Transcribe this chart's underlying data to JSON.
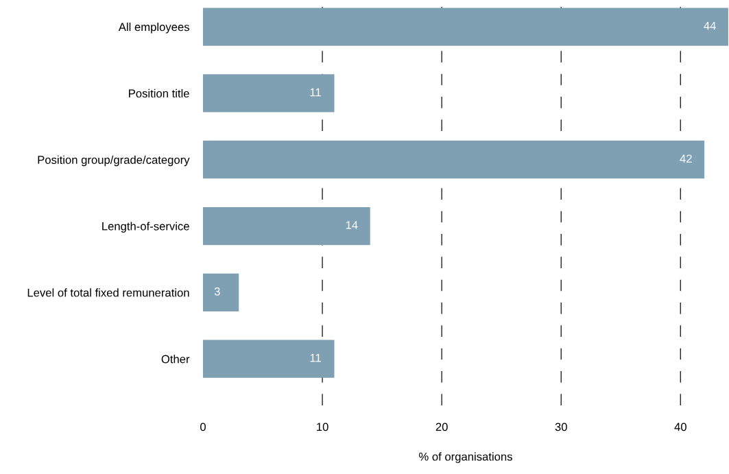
{
  "chart_data": {
    "type": "bar",
    "orientation": "horizontal",
    "xlabel": "% of organisations",
    "categories": [
      "All employees",
      "Position title",
      "Position group/grade/category",
      "Length-of-service",
      "Level of total fixed remuneration",
      "Other"
    ],
    "values": [
      44,
      11,
      42,
      14,
      3,
      11
    ],
    "color": "#7f9fb3",
    "xlim": [
      0,
      44
    ],
    "xticks": [
      0,
      10,
      20,
      30,
      40
    ],
    "grid": "x",
    "data_labels": true
  }
}
